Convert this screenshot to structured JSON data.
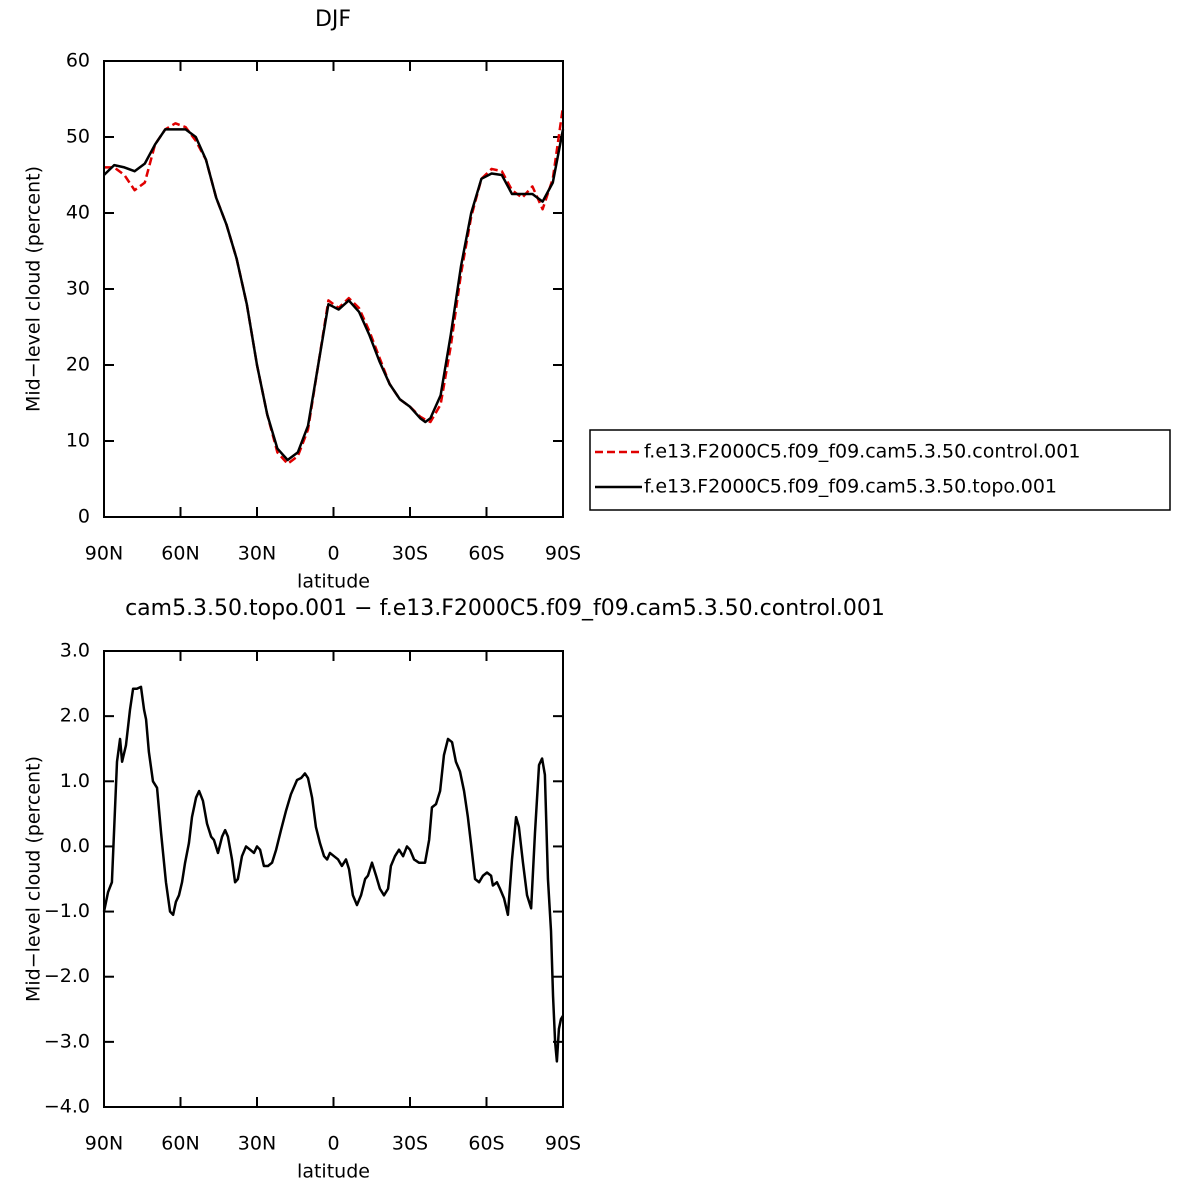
{
  "chart_data": [
    {
      "type": "line",
      "title": "DJF",
      "xlabel": "latitude",
      "ylabel": "Mid−level cloud (percent)",
      "xlim": [
        90,
        -90
      ],
      "ylim": [
        0,
        60
      ],
      "xticks": [
        {
          "value": 90,
          "label": "90N"
        },
        {
          "value": 60,
          "label": "60N"
        },
        {
          "value": 30,
          "label": "30N"
        },
        0,
        {
          "value": -30,
          "label": "30S"
        },
        {
          "value": -60,
          "label": "60S"
        },
        {
          "value": -90,
          "label": "90S"
        }
      ],
      "yticks": [
        0,
        10,
        20,
        30,
        40,
        50,
        60
      ],
      "legend": "outside-right",
      "x": [
        90,
        86,
        82,
        78,
        74,
        70,
        66,
        62,
        58,
        54,
        50,
        46,
        42,
        38,
        34,
        30,
        26,
        22,
        18,
        14,
        10,
        6,
        2,
        -2,
        -6,
        -10,
        -14,
        -18,
        -22,
        -26,
        -30,
        -34,
        -36,
        -38,
        -42,
        -46,
        -50,
        -54,
        -58,
        -62,
        -66,
        -70,
        -74,
        -78,
        -82,
        -86,
        -90
      ],
      "series": [
        {
          "name": "f.e13.F2000C5.f09_f09.cam5.3.50.control.001",
          "color": "#e00000",
          "linestyle": "dashed",
          "values": [
            46,
            46,
            45,
            43,
            44,
            49,
            51,
            51.8,
            51.3,
            49.5,
            47,
            42,
            38.5,
            34,
            28,
            20,
            13.5,
            8.5,
            7,
            8,
            11.5,
            20,
            28.5,
            27.5,
            28.8,
            27.5,
            24.5,
            21,
            17.5,
            15.5,
            14.5,
            13.2,
            12.8,
            12.5,
            14.8,
            22.5,
            32,
            39.5,
            44.5,
            45.8,
            45.5,
            43,
            42,
            43.5,
            40.5,
            44.5,
            54
          ]
        },
        {
          "name": "f.e13.F2000C5.f09_f09.cam5.3.50.topo.001",
          "color": "#000000",
          "linestyle": "solid",
          "values": [
            45,
            46.3,
            46,
            45.5,
            46.5,
            49,
            51,
            51,
            51,
            50,
            47,
            42,
            38.5,
            34,
            28,
            20,
            13.5,
            9,
            7.5,
            8.5,
            12,
            20,
            28,
            27.3,
            28.5,
            27,
            24,
            20.5,
            17.5,
            15.5,
            14.5,
            13,
            12.5,
            13,
            16,
            24,
            33,
            40,
            44.5,
            45.2,
            45,
            42.5,
            42.5,
            42.5,
            41.5,
            44,
            51
          ]
        }
      ]
    },
    {
      "type": "line",
      "title": "cam5.3.50.topo.001 − f.e13.F2000C5.f09_f09.cam5.3.50.control.001",
      "xlabel": "latitude",
      "ylabel": "Mid−level cloud (percent)",
      "xlim": [
        90,
        -90
      ],
      "ylim": [
        -4,
        3
      ],
      "xticks": [
        {
          "value": 90,
          "label": "90N"
        },
        {
          "value": 60,
          "label": "60N"
        },
        {
          "value": 30,
          "label": "30N"
        },
        0,
        {
          "value": -30,
          "label": "30S"
        },
        {
          "value": -60,
          "label": "60S"
        },
        {
          "value": -90,
          "label": "90S"
        }
      ],
      "yticks": [
        {
          "value": 3,
          "label": "3.0"
        },
        {
          "value": 2,
          "label": "2.0"
        },
        {
          "value": 1,
          "label": "1.0"
        },
        {
          "value": 0,
          "label": "0.0"
        },
        {
          "value": -1,
          "label": "−1.0"
        },
        {
          "value": -2,
          "label": "−2.0"
        },
        {
          "value": -3,
          "label": "−3.0"
        },
        {
          "value": -4,
          "label": "−4.0"
        }
      ],
      "x": [
        90,
        88.4,
        86.9,
        84.9,
        83.7,
        82.9,
        81.4,
        79.8,
        78.6,
        77.1,
        75.5,
        74.3,
        73.5,
        72.4,
        70.8,
        69.2,
        67.6,
        65.7,
        64.1,
        62.9,
        61.8,
        60.6,
        59.4,
        58.2,
        56.7,
        55.5,
        53.9,
        52.7,
        51.2,
        49.6,
        48.0,
        46.9,
        45.3,
        43.7,
        42.5,
        41.4,
        39.8,
        38.6,
        37.5,
        35.9,
        34.3,
        32.7,
        31.2,
        30.0,
        28.8,
        27.3,
        25.7,
        24.1,
        22.5,
        20.6,
        18.6,
        16.7,
        14.3,
        12.7,
        11.2,
        10.0,
        8.4,
        6.9,
        5.3,
        3.7,
        2.5,
        1.4,
        -0.2,
        -1.8,
        -3.3,
        -4.9,
        -6.1,
        -7.6,
        -9.2,
        -10.8,
        -12.4,
        -13.5,
        -15.1,
        -16.7,
        -18.2,
        -19.8,
        -21.4,
        -22.5,
        -24.1,
        -25.7,
        -27.3,
        -28.8,
        -30.0,
        -31.6,
        -33.5,
        -35.9,
        -37.5,
        -38.6,
        -40.2,
        -41.8,
        -43.3,
        -44.9,
        -46.5,
        -48.0,
        -49.6,
        -51.2,
        -52.7,
        -53.9,
        -55.5,
        -57.1,
        -58.6,
        -60.2,
        -61.8,
        -62.5,
        -64.1,
        -65.3,
        -66.9,
        -68.4,
        -70.0,
        -71.6,
        -72.7,
        -74.3,
        -75.9,
        -77.5,
        -79.0,
        -80.6,
        -81.8,
        -82.9,
        -84.1,
        -85.3,
        -86.1,
        -86.9,
        -87.6,
        -88.4,
        -89.2,
        -90
      ],
      "series": [
        {
          "color": "#000000",
          "linestyle": "solid",
          "values": [
            -1.0,
            -0.7,
            -0.55,
            1.3,
            1.65,
            1.3,
            1.55,
            2.1,
            2.42,
            2.42,
            2.45,
            2.1,
            1.95,
            1.45,
            1.0,
            0.9,
            0.2,
            -0.55,
            -1.0,
            -1.05,
            -0.85,
            -0.75,
            -0.55,
            -0.25,
            0.05,
            0.45,
            0.75,
            0.85,
            0.7,
            0.35,
            0.15,
            0.1,
            -0.1,
            0.15,
            0.25,
            0.15,
            -0.2,
            -0.55,
            -0.5,
            -0.15,
            0.0,
            -0.05,
            -0.1,
            0.0,
            -0.05,
            -0.3,
            -0.3,
            -0.25,
            -0.05,
            0.25,
            0.55,
            0.8,
            1.02,
            1.05,
            1.12,
            1.05,
            0.75,
            0.3,
            0.05,
            -0.15,
            -0.2,
            -0.1,
            -0.15,
            -0.2,
            -0.3,
            -0.2,
            -0.35,
            -0.75,
            -0.9,
            -0.75,
            -0.5,
            -0.45,
            -0.25,
            -0.45,
            -0.65,
            -0.75,
            -0.65,
            -0.3,
            -0.15,
            -0.05,
            -0.15,
            0.0,
            -0.05,
            -0.2,
            -0.25,
            -0.25,
            0.1,
            0.6,
            0.65,
            0.85,
            1.4,
            1.65,
            1.6,
            1.3,
            1.15,
            0.85,
            0.45,
            0.05,
            -0.5,
            -0.55,
            -0.45,
            -0.4,
            -0.45,
            -0.6,
            -0.55,
            -0.65,
            -0.8,
            -1.05,
            -0.2,
            0.45,
            0.3,
            -0.25,
            -0.75,
            -0.95,
            0.2,
            1.25,
            1.35,
            1.1,
            -0.5,
            -1.3,
            -2.3,
            -3.0,
            -3.3,
            -2.8,
            -2.65,
            -2.6
          ]
        }
      ]
    }
  ]
}
